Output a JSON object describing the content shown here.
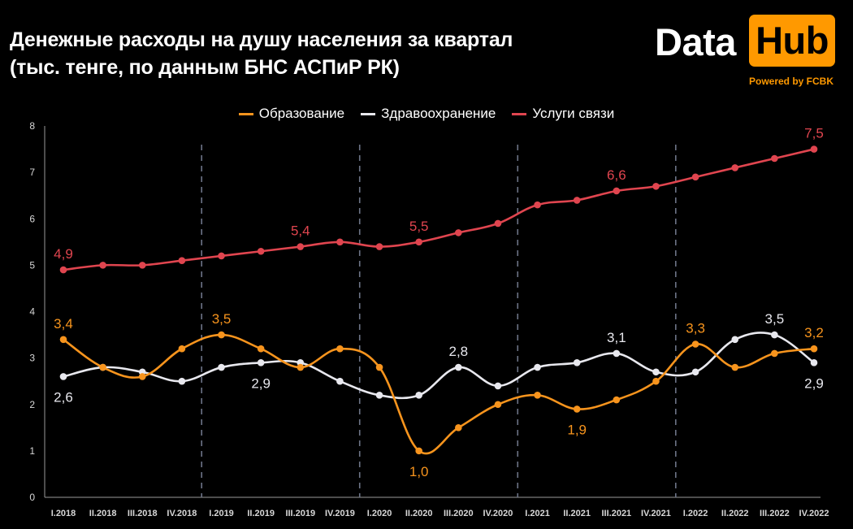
{
  "header": {
    "title_line1": "Денежные расходы на душу населения за квартал",
    "title_line2": "(тыс. тенге, по данным БНС АСПиР РК)"
  },
  "logo": {
    "word1": "Data",
    "word2": "Hub",
    "powered": "Powered by FCBK",
    "accent": "#ff9900"
  },
  "chart_data": {
    "type": "line",
    "title": "Денежные расходы на душу населения за квартал (тыс. тенге, по данным БНС АСПиР РК)",
    "xlabel": "",
    "ylabel": "",
    "ylim": [
      0,
      8
    ],
    "yticks": [
      0,
      1,
      2,
      3,
      4,
      5,
      6,
      7,
      8
    ],
    "grid": false,
    "legend_position": "top-center",
    "year_separators_after": [
      "IV.2018",
      "IV.2019",
      "IV.2020",
      "IV.2021"
    ],
    "categories": [
      "I.2018",
      "II.2018",
      "III.2018",
      "IV.2018",
      "I.2019",
      "II.2019",
      "III.2019",
      "IV.2019",
      "I.2020",
      "II.2020",
      "III.2020",
      "IV.2020",
      "I.2021",
      "II.2021",
      "III.2021",
      "IV.2021",
      "I.2022",
      "II.2022",
      "III.2022",
      "IV.2022"
    ],
    "series": [
      {
        "name": "Образование",
        "color": "#f7941d",
        "values": [
          3.4,
          2.8,
          2.6,
          3.2,
          3.5,
          3.2,
          2.8,
          3.2,
          2.8,
          1.0,
          1.5,
          2.0,
          2.2,
          1.9,
          2.1,
          2.5,
          3.3,
          2.8,
          3.1,
          3.2
        ],
        "labels": [
          {
            "index": 0,
            "text": "3,4",
            "pos": "above"
          },
          {
            "index": 4,
            "text": "3,5",
            "pos": "above"
          },
          {
            "index": 9,
            "text": "1,0",
            "pos": "below"
          },
          {
            "index": 13,
            "text": "1,9",
            "pos": "below"
          },
          {
            "index": 16,
            "text": "3,3",
            "pos": "above"
          },
          {
            "index": 19,
            "text": "3,2",
            "pos": "above"
          }
        ]
      },
      {
        "name": "Здравоохранение",
        "color": "#e8e8ee",
        "values": [
          2.6,
          2.8,
          2.7,
          2.5,
          2.8,
          2.9,
          2.9,
          2.5,
          2.2,
          2.2,
          2.8,
          2.4,
          2.8,
          2.9,
          3.1,
          2.7,
          2.7,
          3.4,
          3.5,
          2.9
        ],
        "labels": [
          {
            "index": 0,
            "text": "2,6",
            "pos": "below"
          },
          {
            "index": 5,
            "text": "2,9",
            "pos": "below"
          },
          {
            "index": 10,
            "text": "2,8",
            "pos": "above"
          },
          {
            "index": 14,
            "text": "3,1",
            "pos": "above"
          },
          {
            "index": 18,
            "text": "3,5",
            "pos": "above"
          },
          {
            "index": 19,
            "text": "2,9",
            "pos": "below"
          }
        ]
      },
      {
        "name": "Услуги связи",
        "color": "#e0454f",
        "values": [
          4.9,
          5.0,
          5.0,
          5.1,
          5.2,
          5.3,
          5.4,
          5.5,
          5.4,
          5.5,
          5.7,
          5.9,
          6.3,
          6.4,
          6.6,
          6.7,
          6.9,
          7.1,
          7.3,
          7.5
        ],
        "labels": [
          {
            "index": 0,
            "text": "4,9",
            "pos": "above"
          },
          {
            "index": 6,
            "text": "5,4",
            "pos": "above"
          },
          {
            "index": 9,
            "text": "5,5",
            "pos": "above"
          },
          {
            "index": 14,
            "text": "6,6",
            "pos": "above"
          },
          {
            "index": 19,
            "text": "7,5",
            "pos": "above"
          }
        ]
      }
    ]
  }
}
